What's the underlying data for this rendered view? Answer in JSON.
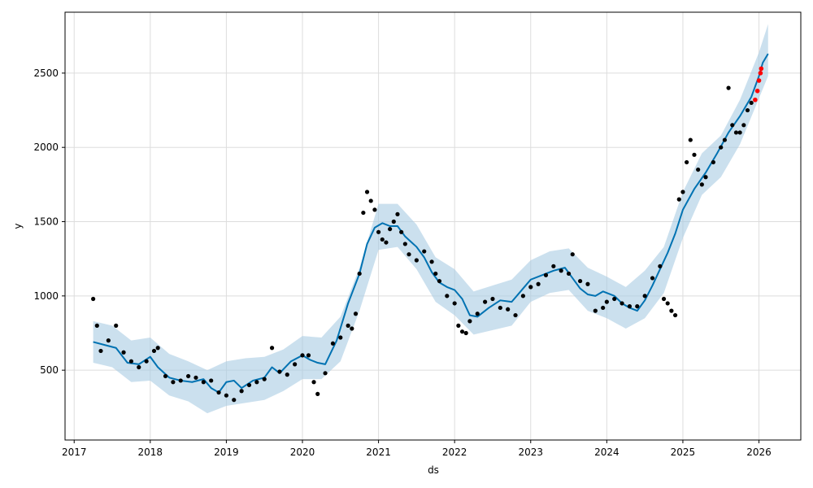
{
  "chart_data": {
    "type": "line",
    "title": "",
    "xlabel": "ds",
    "ylabel": "y",
    "xlim": [
      2016.88,
      2026.55
    ],
    "ylim": [
      30,
      2910
    ],
    "x_ticks": [
      2017,
      2018,
      2019,
      2020,
      2021,
      2022,
      2023,
      2024,
      2025,
      2026
    ],
    "x_tick_labels": [
      "2017",
      "2018",
      "2019",
      "2020",
      "2021",
      "2022",
      "2023",
      "2024",
      "2025",
      "2026"
    ],
    "y_ticks": [
      500,
      1000,
      1500,
      2000,
      2500
    ],
    "y_tick_labels": [
      "500",
      "1000",
      "1500",
      "2000",
      "2500"
    ],
    "grid": true,
    "legend": "none",
    "colors": {
      "forecast": "#0072B2",
      "band": "#A9CCE3",
      "observed": "#000000",
      "recent": "#FF0000",
      "grid": "#DDDDDD"
    },
    "series": [
      {
        "role": "forecast",
        "x": [
          2017.25,
          2017.4,
          2017.55,
          2017.7,
          2017.85,
          2018.0,
          2018.1,
          2018.25,
          2018.4,
          2018.55,
          2018.7,
          2018.8,
          2018.9,
          2019.0,
          2019.1,
          2019.2,
          2019.35,
          2019.5,
          2019.6,
          2019.7,
          2019.85,
          2020.0,
          2020.1,
          2020.2,
          2020.3,
          2020.45,
          2020.6,
          2020.75,
          2020.85,
          2020.95,
          2021.05,
          2021.15,
          2021.25,
          2021.35,
          2021.5,
          2021.6,
          2021.7,
          2021.8,
          2021.9,
          2022.0,
          2022.1,
          2022.2,
          2022.3,
          2022.45,
          2022.6,
          2022.75,
          2022.9,
          2023.0,
          2023.15,
          2023.3,
          2023.45,
          2023.55,
          2023.65,
          2023.75,
          2023.85,
          2023.95,
          2024.1,
          2024.2,
          2024.3,
          2024.4,
          2024.5,
          2024.6,
          2024.7,
          2024.8,
          2024.9,
          2025.0,
          2025.15,
          2025.3,
          2025.45,
          2025.6,
          2025.75,
          2025.9,
          2026.0,
          2026.05,
          2026.12
        ],
        "y": [
          690,
          670,
          650,
          550,
          540,
          590,
          520,
          450,
          430,
          420,
          440,
          380,
          350,
          420,
          430,
          380,
          430,
          450,
          520,
          480,
          560,
          600,
          570,
          550,
          540,
          700,
          950,
          1150,
          1350,
          1460,
          1490,
          1470,
          1470,
          1400,
          1330,
          1260,
          1160,
          1090,
          1060,
          1040,
          980,
          870,
          860,
          920,
          970,
          960,
          1050,
          1110,
          1140,
          1170,
          1190,
          1120,
          1050,
          1010,
          1000,
          1030,
          1000,
          950,
          920,
          900,
          970,
          1070,
          1180,
          1290,
          1420,
          1580,
          1720,
          1830,
          1960,
          2100,
          2210,
          2340,
          2480,
          2570,
          2630
        ]
      },
      {
        "role": "uncertainty_band",
        "x": [
          2017.25,
          2017.5,
          2017.75,
          2018.0,
          2018.25,
          2018.5,
          2018.75,
          2019.0,
          2019.25,
          2019.5,
          2019.75,
          2020.0,
          2020.25,
          2020.5,
          2020.75,
          2021.0,
          2021.25,
          2021.5,
          2021.75,
          2022.0,
          2022.25,
          2022.5,
          2022.75,
          2023.0,
          2023.25,
          2023.5,
          2023.75,
          2024.0,
          2024.25,
          2024.5,
          2024.75,
          2025.0,
          2025.25,
          2025.5,
          2025.75,
          2026.0,
          2026.12
        ],
        "lower": [
          550,
          520,
          420,
          430,
          330,
          290,
          210,
          260,
          280,
          300,
          360,
          440,
          440,
          560,
          900,
          1310,
          1330,
          1180,
          960,
          870,
          740,
          770,
          800,
          960,
          1020,
          1040,
          900,
          850,
          780,
          850,
          1020,
          1390,
          1680,
          1800,
          2020,
          2330,
          2480
        ],
        "upper": [
          830,
          800,
          700,
          720,
          610,
          560,
          500,
          560,
          580,
          590,
          640,
          730,
          720,
          860,
          1190,
          1620,
          1620,
          1480,
          1260,
          1180,
          1030,
          1070,
          1110,
          1240,
          1300,
          1320,
          1190,
          1130,
          1060,
          1170,
          1330,
          1700,
          1960,
          2080,
          2320,
          2640,
          2830
        ]
      },
      {
        "role": "observed",
        "x": [
          2017.25,
          2017.3,
          2017.35,
          2017.45,
          2017.55,
          2017.65,
          2017.75,
          2017.85,
          2017.95,
          2018.05,
          2018.1,
          2018.2,
          2018.3,
          2018.4,
          2018.5,
          2018.6,
          2018.7,
          2018.8,
          2018.9,
          2019.0,
          2019.1,
          2019.2,
          2019.3,
          2019.4,
          2019.5,
          2019.6,
          2019.7,
          2019.8,
          2019.9,
          2020.0,
          2020.08,
          2020.15,
          2020.2,
          2020.3,
          2020.4,
          2020.5,
          2020.6,
          2020.65,
          2020.7,
          2020.75,
          2020.8,
          2020.85,
          2020.9,
          2020.95,
          2021.0,
          2021.05,
          2021.1,
          2021.15,
          2021.2,
          2021.25,
          2021.3,
          2021.35,
          2021.4,
          2021.5,
          2021.6,
          2021.7,
          2021.75,
          2021.8,
          2021.9,
          2022.0,
          2022.05,
          2022.1,
          2022.15,
          2022.2,
          2022.3,
          2022.4,
          2022.5,
          2022.6,
          2022.7,
          2022.8,
          2022.9,
          2023.0,
          2023.1,
          2023.2,
          2023.3,
          2023.4,
          2023.5,
          2023.55,
          2023.65,
          2023.75,
          2023.85,
          2023.95,
          2024.0,
          2024.1,
          2024.2,
          2024.3,
          2024.4,
          2024.5,
          2024.6,
          2024.7,
          2024.75,
          2024.8,
          2024.85,
          2024.9,
          2024.95,
          2025.0,
          2025.05,
          2025.1,
          2025.15,
          2025.2,
          2025.25,
          2025.3,
          2025.4,
          2025.5,
          2025.55,
          2025.6,
          2025.65,
          2025.7,
          2025.75,
          2025.8,
          2025.85,
          2025.9
        ],
        "y": [
          980,
          800,
          630,
          700,
          800,
          620,
          560,
          520,
          560,
          630,
          650,
          460,
          420,
          430,
          460,
          450,
          420,
          430,
          350,
          330,
          300,
          360,
          400,
          420,
          440,
          650,
          490,
          470,
          540,
          600,
          600,
          420,
          340,
          480,
          680,
          720,
          800,
          780,
          880,
          1150,
          1560,
          1700,
          1640,
          1580,
          1430,
          1380,
          1360,
          1450,
          1500,
          1550,
          1430,
          1350,
          1280,
          1240,
          1300,
          1230,
          1150,
          1100,
          1000,
          950,
          800,
          760,
          750,
          830,
          880,
          960,
          980,
          920,
          910,
          870,
          1000,
          1060,
          1080,
          1140,
          1200,
          1170,
          1150,
          1280,
          1100,
          1080,
          900,
          920,
          960,
          980,
          950,
          930,
          930,
          1000,
          1120,
          1200,
          980,
          950,
          900,
          870,
          1650,
          1700,
          1900,
          2050,
          1950,
          1850,
          1750,
          1800,
          1900,
          2000,
          2050,
          2400,
          2150,
          2100,
          2100,
          2150,
          2250,
          2300
        ],
        "style": "black-dots"
      },
      {
        "role": "recent",
        "x": [
          2025.95,
          2025.98,
          2026.0,
          2026.02,
          2026.03
        ],
        "y": [
          2320,
          2380,
          2450,
          2500,
          2530
        ],
        "style": "red-dots"
      }
    ]
  }
}
